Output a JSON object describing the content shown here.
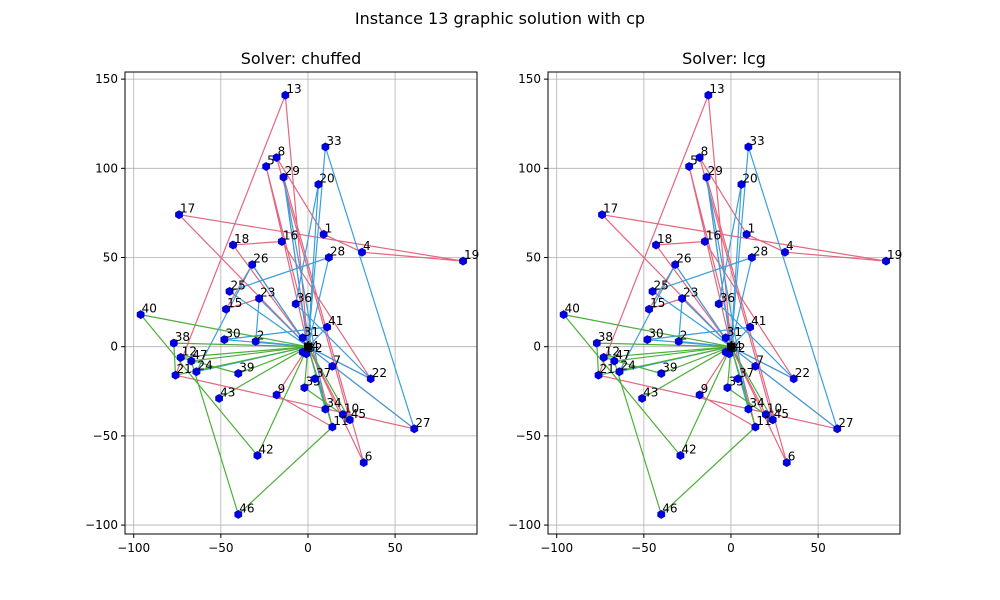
{
  "title": "Instance 13 graphic solution with cp",
  "colors": {
    "red": "#e3667f",
    "blue": "#3a9fdc",
    "green": "#4caf3a",
    "node": "#0000dd",
    "grid": "#b0b0b0"
  },
  "chart_data": [
    {
      "type": "scatter",
      "title": "Solver: chuffed",
      "xlim": [
        -105,
        97
      ],
      "ylim": [
        -105,
        154
      ],
      "xticks": [
        -100,
        -50,
        0,
        50
      ],
      "yticks": [
        -100,
        -50,
        0,
        50,
        100,
        150
      ],
      "grid": true,
      "depot": [
        0,
        0
      ],
      "nodes": [
        {
          "id": "1",
          "x": 9,
          "y": 63
        },
        {
          "id": "2",
          "x": -30,
          "y": 3
        },
        {
          "id": "4",
          "x": 31,
          "y": 53
        },
        {
          "id": "5",
          "x": -24,
          "y": 101
        },
        {
          "id": "6",
          "x": 32,
          "y": -65
        },
        {
          "id": "7",
          "x": 14,
          "y": -11
        },
        {
          "id": "8",
          "x": -18,
          "y": 106
        },
        {
          "id": "9",
          "x": -18,
          "y": -27
        },
        {
          "id": "10",
          "x": 20,
          "y": -38
        },
        {
          "id": "11",
          "x": 14,
          "y": -45
        },
        {
          "id": "12",
          "x": -73,
          "y": -6
        },
        {
          "id": "13",
          "x": -13,
          "y": 141
        },
        {
          "id": "15",
          "x": -47,
          "y": 21
        },
        {
          "id": "16",
          "x": -15,
          "y": 59
        },
        {
          "id": "17",
          "x": -74,
          "y": 74
        },
        {
          "id": "18",
          "x": -43,
          "y": 57
        },
        {
          "id": "19",
          "x": 89,
          "y": 48
        },
        {
          "id": "20",
          "x": 6,
          "y": 91
        },
        {
          "id": "21",
          "x": -76,
          "y": -16
        },
        {
          "id": "22",
          "x": 36,
          "y": -18
        },
        {
          "id": "23",
          "x": -28,
          "y": 27
        },
        {
          "id": "24",
          "x": -64,
          "y": -14
        },
        {
          "id": "25",
          "x": -45,
          "y": 31
        },
        {
          "id": "26",
          "x": -32,
          "y": 46
        },
        {
          "id": "27",
          "x": 61,
          "y": -46
        },
        {
          "id": "28",
          "x": 12,
          "y": 50
        },
        {
          "id": "29",
          "x": -14,
          "y": 95
        },
        {
          "id": "30",
          "x": -48,
          "y": 4
        },
        {
          "id": "31",
          "x": -3,
          "y": 5
        },
        {
          "id": "32",
          "x": -1,
          "y": -4
        },
        {
          "id": "33",
          "x": 10,
          "y": 112
        },
        {
          "id": "34",
          "x": 10,
          "y": -35
        },
        {
          "id": "35",
          "x": -2,
          "y": -23
        },
        {
          "id": "36",
          "x": -7,
          "y": 24
        },
        {
          "id": "37",
          "x": 4,
          "y": -18
        },
        {
          "id": "38",
          "x": -77,
          "y": 2
        },
        {
          "id": "39",
          "x": -40,
          "y": -15
        },
        {
          "id": "40",
          "x": -96,
          "y": 18
        },
        {
          "id": "41",
          "x": 11,
          "y": 11
        },
        {
          "id": "42",
          "x": -29,
          "y": -61
        },
        {
          "id": "43",
          "x": -51,
          "y": -29
        },
        {
          "id": "44",
          "x": -3,
          "y": -3
        },
        {
          "id": "45",
          "x": 24,
          "y": -41
        },
        {
          "id": "46",
          "x": -40,
          "y": -94
        },
        {
          "id": "47",
          "x": -67,
          "y": -8
        }
      ],
      "routes": [
        {
          "color": "red",
          "path": [
            "0",
            "17",
            "19",
            "4",
            "1",
            "8",
            "45",
            "10",
            "0"
          ]
        },
        {
          "color": "red",
          "path": [
            "0",
            "13",
            "21",
            "27",
            "0"
          ]
        },
        {
          "color": "red",
          "path": [
            "0",
            "29",
            "6",
            "0"
          ]
        },
        {
          "color": "red",
          "path": [
            "0",
            "5",
            "11",
            "9",
            "0"
          ]
        },
        {
          "color": "red",
          "path": [
            "0",
            "18",
            "16",
            "22",
            "0"
          ]
        },
        {
          "color": "red",
          "path": [
            "0",
            "23",
            "15",
            "26",
            "0"
          ]
        },
        {
          "color": "blue",
          "path": [
            "0",
            "20",
            "36",
            "22",
            "0"
          ]
        },
        {
          "color": "blue",
          "path": [
            "0",
            "33",
            "27",
            "0"
          ]
        },
        {
          "color": "blue",
          "path": [
            "0",
            "28",
            "25",
            "0"
          ]
        },
        {
          "color": "blue",
          "path": [
            "0",
            "29",
            "34",
            "0"
          ]
        },
        {
          "color": "blue",
          "path": [
            "0",
            "2",
            "23",
            "0"
          ]
        },
        {
          "color": "blue",
          "path": [
            "0",
            "30",
            "41",
            "0"
          ]
        },
        {
          "color": "blue",
          "path": [
            "0",
            "24",
            "26",
            "0"
          ]
        },
        {
          "color": "green",
          "path": [
            "0",
            "40",
            "42",
            "0"
          ]
        },
        {
          "color": "green",
          "path": [
            "0",
            "38",
            "21",
            "0"
          ]
        },
        {
          "color": "green",
          "path": [
            "0",
            "12",
            "39",
            "0"
          ]
        },
        {
          "color": "green",
          "path": [
            "0",
            "47",
            "46",
            "11",
            "0"
          ]
        },
        {
          "color": "green",
          "path": [
            "0",
            "43",
            "0"
          ]
        },
        {
          "color": "green",
          "path": [
            "0",
            "35",
            "45",
            "0"
          ]
        }
      ]
    },
    {
      "type": "scatter",
      "title": "Solver: lcg",
      "xlim": [
        -105,
        97
      ],
      "ylim": [
        -105,
        154
      ],
      "xticks": [
        -100,
        -50,
        0,
        50
      ],
      "yticks": [
        -100,
        -50,
        0,
        50,
        100,
        150
      ],
      "grid": true,
      "depot": [
        0,
        0
      ],
      "nodes": [
        {
          "id": "1",
          "x": 9,
          "y": 63
        },
        {
          "id": "2",
          "x": -30,
          "y": 3
        },
        {
          "id": "4",
          "x": 31,
          "y": 53
        },
        {
          "id": "5",
          "x": -24,
          "y": 101
        },
        {
          "id": "6",
          "x": 32,
          "y": -65
        },
        {
          "id": "7",
          "x": 14,
          "y": -11
        },
        {
          "id": "8",
          "x": -18,
          "y": 106
        },
        {
          "id": "9",
          "x": -18,
          "y": -27
        },
        {
          "id": "10",
          "x": 20,
          "y": -38
        },
        {
          "id": "11",
          "x": 14,
          "y": -45
        },
        {
          "id": "12",
          "x": -73,
          "y": -6
        },
        {
          "id": "13",
          "x": -13,
          "y": 141
        },
        {
          "id": "15",
          "x": -47,
          "y": 21
        },
        {
          "id": "16",
          "x": -15,
          "y": 59
        },
        {
          "id": "17",
          "x": -74,
          "y": 74
        },
        {
          "id": "18",
          "x": -43,
          "y": 57
        },
        {
          "id": "19",
          "x": 89,
          "y": 48
        },
        {
          "id": "20",
          "x": 6,
          "y": 91
        },
        {
          "id": "21",
          "x": -76,
          "y": -16
        },
        {
          "id": "22",
          "x": 36,
          "y": -18
        },
        {
          "id": "23",
          "x": -28,
          "y": 27
        },
        {
          "id": "24",
          "x": -64,
          "y": -14
        },
        {
          "id": "25",
          "x": -45,
          "y": 31
        },
        {
          "id": "26",
          "x": -32,
          "y": 46
        },
        {
          "id": "27",
          "x": 61,
          "y": -46
        },
        {
          "id": "28",
          "x": 12,
          "y": 50
        },
        {
          "id": "29",
          "x": -14,
          "y": 95
        },
        {
          "id": "30",
          "x": -48,
          "y": 4
        },
        {
          "id": "31",
          "x": -3,
          "y": 5
        },
        {
          "id": "32",
          "x": -1,
          "y": -4
        },
        {
          "id": "33",
          "x": 10,
          "y": 112
        },
        {
          "id": "34",
          "x": 10,
          "y": -35
        },
        {
          "id": "35",
          "x": -2,
          "y": -23
        },
        {
          "id": "36",
          "x": -7,
          "y": 24
        },
        {
          "id": "37",
          "x": 4,
          "y": -18
        },
        {
          "id": "38",
          "x": -77,
          "y": 2
        },
        {
          "id": "39",
          "x": -40,
          "y": -15
        },
        {
          "id": "40",
          "x": -96,
          "y": 18
        },
        {
          "id": "41",
          "x": 11,
          "y": 11
        },
        {
          "id": "42",
          "x": -29,
          "y": -61
        },
        {
          "id": "43",
          "x": -51,
          "y": -29
        },
        {
          "id": "44",
          "x": -3,
          "y": -3
        },
        {
          "id": "45",
          "x": 24,
          "y": -41
        },
        {
          "id": "46",
          "x": -40,
          "y": -94
        },
        {
          "id": "47",
          "x": -67,
          "y": -8
        }
      ],
      "routes": [
        {
          "color": "red",
          "path": [
            "0",
            "17",
            "19",
            "4",
            "1",
            "8",
            "45",
            "10",
            "0"
          ]
        },
        {
          "color": "red",
          "path": [
            "0",
            "13",
            "21",
            "27",
            "0"
          ]
        },
        {
          "color": "red",
          "path": [
            "0",
            "29",
            "6",
            "0"
          ]
        },
        {
          "color": "red",
          "path": [
            "0",
            "5",
            "11",
            "9",
            "0"
          ]
        },
        {
          "color": "red",
          "path": [
            "0",
            "18",
            "16",
            "22",
            "0"
          ]
        },
        {
          "color": "red",
          "path": [
            "0",
            "23",
            "15",
            "26",
            "0"
          ]
        },
        {
          "color": "blue",
          "path": [
            "0",
            "20",
            "36",
            "22",
            "0"
          ]
        },
        {
          "color": "blue",
          "path": [
            "0",
            "33",
            "27",
            "0"
          ]
        },
        {
          "color": "blue",
          "path": [
            "0",
            "28",
            "25",
            "0"
          ]
        },
        {
          "color": "blue",
          "path": [
            "0",
            "29",
            "34",
            "0"
          ]
        },
        {
          "color": "blue",
          "path": [
            "0",
            "2",
            "23",
            "0"
          ]
        },
        {
          "color": "blue",
          "path": [
            "0",
            "30",
            "41",
            "0"
          ]
        },
        {
          "color": "blue",
          "path": [
            "0",
            "24",
            "26",
            "0"
          ]
        },
        {
          "color": "green",
          "path": [
            "0",
            "40",
            "42",
            "0"
          ]
        },
        {
          "color": "green",
          "path": [
            "0",
            "38",
            "21",
            "0"
          ]
        },
        {
          "color": "green",
          "path": [
            "0",
            "12",
            "39",
            "0"
          ]
        },
        {
          "color": "green",
          "path": [
            "0",
            "47",
            "46",
            "11",
            "0"
          ]
        },
        {
          "color": "green",
          "path": [
            "0",
            "43",
            "0"
          ]
        },
        {
          "color": "green",
          "path": [
            "0",
            "35",
            "45",
            "0"
          ]
        }
      ]
    }
  ]
}
